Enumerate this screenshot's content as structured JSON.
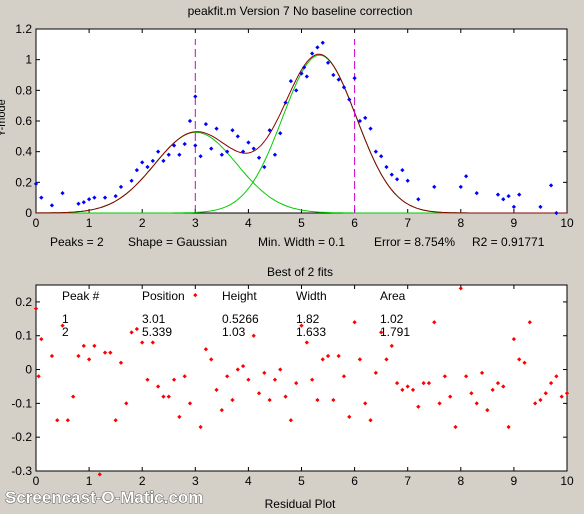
{
  "chart_data": [
    {
      "type": "scatter",
      "title": "peakfit.m Version 7    No baseline correction",
      "ylabel": "Y-mode",
      "xlim": [
        0,
        10
      ],
      "ylim": [
        0,
        1.2
      ],
      "xticks": [
        "0",
        "1",
        "2",
        "3",
        "4",
        "5",
        "6",
        "7",
        "8",
        "9",
        "10"
      ],
      "yticks": [
        "0",
        "0.2",
        "0.4",
        "0.6",
        "0.8",
        "1",
        "1.2"
      ],
      "grid": false,
      "peak_markers_x": [
        3.0,
        6.0
      ],
      "fit_peaks": [
        {
          "position": 3.01,
          "height": 0.5266,
          "width": 1.82
        },
        {
          "position": 5.339,
          "height": 1.03,
          "width": 1.633
        }
      ],
      "data_points": {
        "x": [
          0.0,
          0.1,
          0.3,
          0.5,
          0.8,
          0.9,
          1.0,
          1.1,
          1.3,
          1.5,
          1.6,
          1.8,
          1.9,
          2.0,
          2.1,
          2.2,
          2.3,
          2.4,
          2.5,
          2.6,
          2.7,
          2.8,
          2.9,
          3.0,
          3.0,
          3.1,
          3.2,
          3.3,
          3.4,
          3.5,
          3.6,
          3.7,
          3.8,
          3.9,
          4.0,
          4.1,
          4.2,
          4.3,
          4.4,
          4.5,
          4.6,
          4.7,
          4.8,
          4.9,
          5.0,
          5.05,
          5.1,
          5.2,
          5.3,
          5.4,
          5.5,
          5.6,
          5.7,
          5.8,
          5.9,
          6.0,
          6.1,
          6.2,
          6.3,
          6.4,
          6.5,
          6.6,
          6.7,
          6.8,
          6.9,
          7.0,
          7.2,
          7.5,
          8.0,
          8.1,
          8.3,
          8.7,
          8.8,
          8.9,
          9.0,
          9.1,
          9.5,
          9.7,
          9.8
        ],
        "y": [
          0.19,
          0.1,
          0.05,
          0.13,
          0.06,
          0.07,
          0.09,
          0.1,
          0.1,
          0.11,
          0.17,
          0.21,
          0.28,
          0.33,
          0.3,
          0.34,
          0.4,
          0.34,
          0.38,
          0.44,
          0.38,
          0.45,
          0.6,
          0.44,
          0.76,
          0.37,
          0.58,
          0.42,
          0.55,
          0.38,
          0.4,
          0.54,
          0.5,
          0.4,
          0.46,
          0.42,
          0.36,
          0.3,
          0.54,
          0.38,
          0.52,
          0.72,
          0.86,
          0.8,
          0.91,
          0.95,
          0.89,
          1.04,
          1.08,
          1.11,
          0.98,
          0.9,
          0.87,
          0.82,
          0.74,
          0.88,
          0.6,
          0.62,
          0.55,
          0.4,
          0.37,
          0.3,
          0.25,
          0.22,
          0.28,
          0.21,
          0.09,
          0.17,
          0.17,
          0.24,
          0.13,
          0.12,
          0.09,
          0.11,
          0.04,
          0.12,
          0.04,
          0.18,
          0.0
        ]
      },
      "summary": {
        "peaks": "Peaks = 2",
        "shape": "Shape = Gaussian",
        "min_width": "Min. Width = 0.1",
        "error": "Error = 8.754%",
        "r2": "R2 = 0.91771"
      },
      "colors": {
        "data": "#0000ff",
        "fit": "#8b0000",
        "components": "#00cc00",
        "markers": "#cc00cc"
      }
    },
    {
      "type": "scatter",
      "title": "Best of 2 fits",
      "xlabel": "Residual Plot",
      "xlim": [
        0,
        10
      ],
      "ylim": [
        -0.3,
        0.25
      ],
      "xticks": [
        "0",
        "1",
        "2",
        "3",
        "4",
        "5",
        "6",
        "7",
        "8",
        "9",
        "10"
      ],
      "yticks": [
        "-0.3",
        "-0.2",
        "-0.1",
        "0",
        "0.1",
        "0.2"
      ],
      "grid": false,
      "residuals": {
        "x": [
          0.0,
          0.05,
          0.1,
          0.3,
          0.4,
          0.5,
          0.6,
          0.7,
          0.8,
          0.9,
          1.0,
          1.1,
          1.2,
          1.3,
          1.4,
          1.5,
          1.6,
          1.7,
          1.8,
          1.9,
          2.0,
          2.1,
          2.2,
          2.3,
          2.4,
          2.5,
          2.6,
          2.7,
          2.8,
          2.9,
          3.0,
          3.1,
          3.2,
          3.3,
          3.4,
          3.5,
          3.6,
          3.7,
          3.8,
          3.9,
          4.0,
          4.1,
          4.2,
          4.3,
          4.4,
          4.5,
          4.6,
          4.7,
          4.8,
          4.9,
          5.0,
          5.1,
          5.2,
          5.3,
          5.4,
          5.5,
          5.6,
          5.7,
          5.8,
          5.9,
          6.0,
          6.1,
          6.2,
          6.3,
          6.4,
          6.5,
          6.6,
          6.7,
          6.8,
          6.9,
          7.0,
          7.1,
          7.2,
          7.3,
          7.4,
          7.5,
          7.6,
          7.7,
          7.8,
          7.9,
          8.0,
          8.1,
          8.2,
          8.3,
          8.4,
          8.5,
          8.6,
          8.7,
          8.8,
          8.9,
          9.0,
          9.1,
          9.2,
          9.3,
          9.4,
          9.5,
          9.6,
          9.7,
          9.8,
          9.9,
          10.0
        ],
        "y": [
          0.18,
          -0.02,
          0.09,
          0.04,
          -0.15,
          0.13,
          -0.15,
          -0.08,
          0.04,
          0.07,
          0.03,
          0.07,
          -0.31,
          0.05,
          0.05,
          -0.15,
          0.02,
          -0.1,
          0.11,
          0.12,
          0.08,
          -0.03,
          0.08,
          -0.05,
          -0.08,
          -0.08,
          -0.03,
          -0.14,
          -0.02,
          -0.1,
          0.22,
          -0.17,
          0.06,
          0.03,
          -0.06,
          -0.12,
          -0.02,
          -0.09,
          0.0,
          0.01,
          -0.03,
          0.1,
          -0.07,
          -0.01,
          -0.09,
          -0.03,
          0.0,
          -0.08,
          -0.15,
          -0.04,
          0.13,
          0.08,
          -0.03,
          -0.09,
          0.03,
          0.04,
          -0.09,
          0.04,
          -0.02,
          -0.14,
          0.14,
          0.03,
          -0.1,
          -0.15,
          -0.01,
          0.11,
          0.03,
          0.07,
          -0.04,
          -0.06,
          -0.05,
          -0.06,
          -0.11,
          -0.04,
          -0.04,
          0.14,
          -0.1,
          -0.02,
          -0.08,
          -0.17,
          0.24,
          -0.02,
          -0.07,
          -0.1,
          -0.01,
          -0.12,
          -0.06,
          -0.04,
          -0.05,
          -0.17,
          0.09,
          0.03,
          0.02,
          0.14,
          -0.1,
          -0.09,
          -0.07,
          -0.04,
          -0.02,
          -0.08,
          -0.07
        ]
      },
      "table": {
        "headers": [
          "Peak #",
          "Position",
          "Height",
          "Width",
          "Area"
        ],
        "rows": [
          [
            "1",
            "3.01",
            "0.5266",
            "1.82",
            "1.02"
          ],
          [
            "2",
            "5.339",
            "1.03",
            "1.633",
            "1.791"
          ]
        ]
      },
      "colors": {
        "residual": "#ff0000"
      }
    }
  ],
  "watermark": "Screencast-O-Matic.com"
}
